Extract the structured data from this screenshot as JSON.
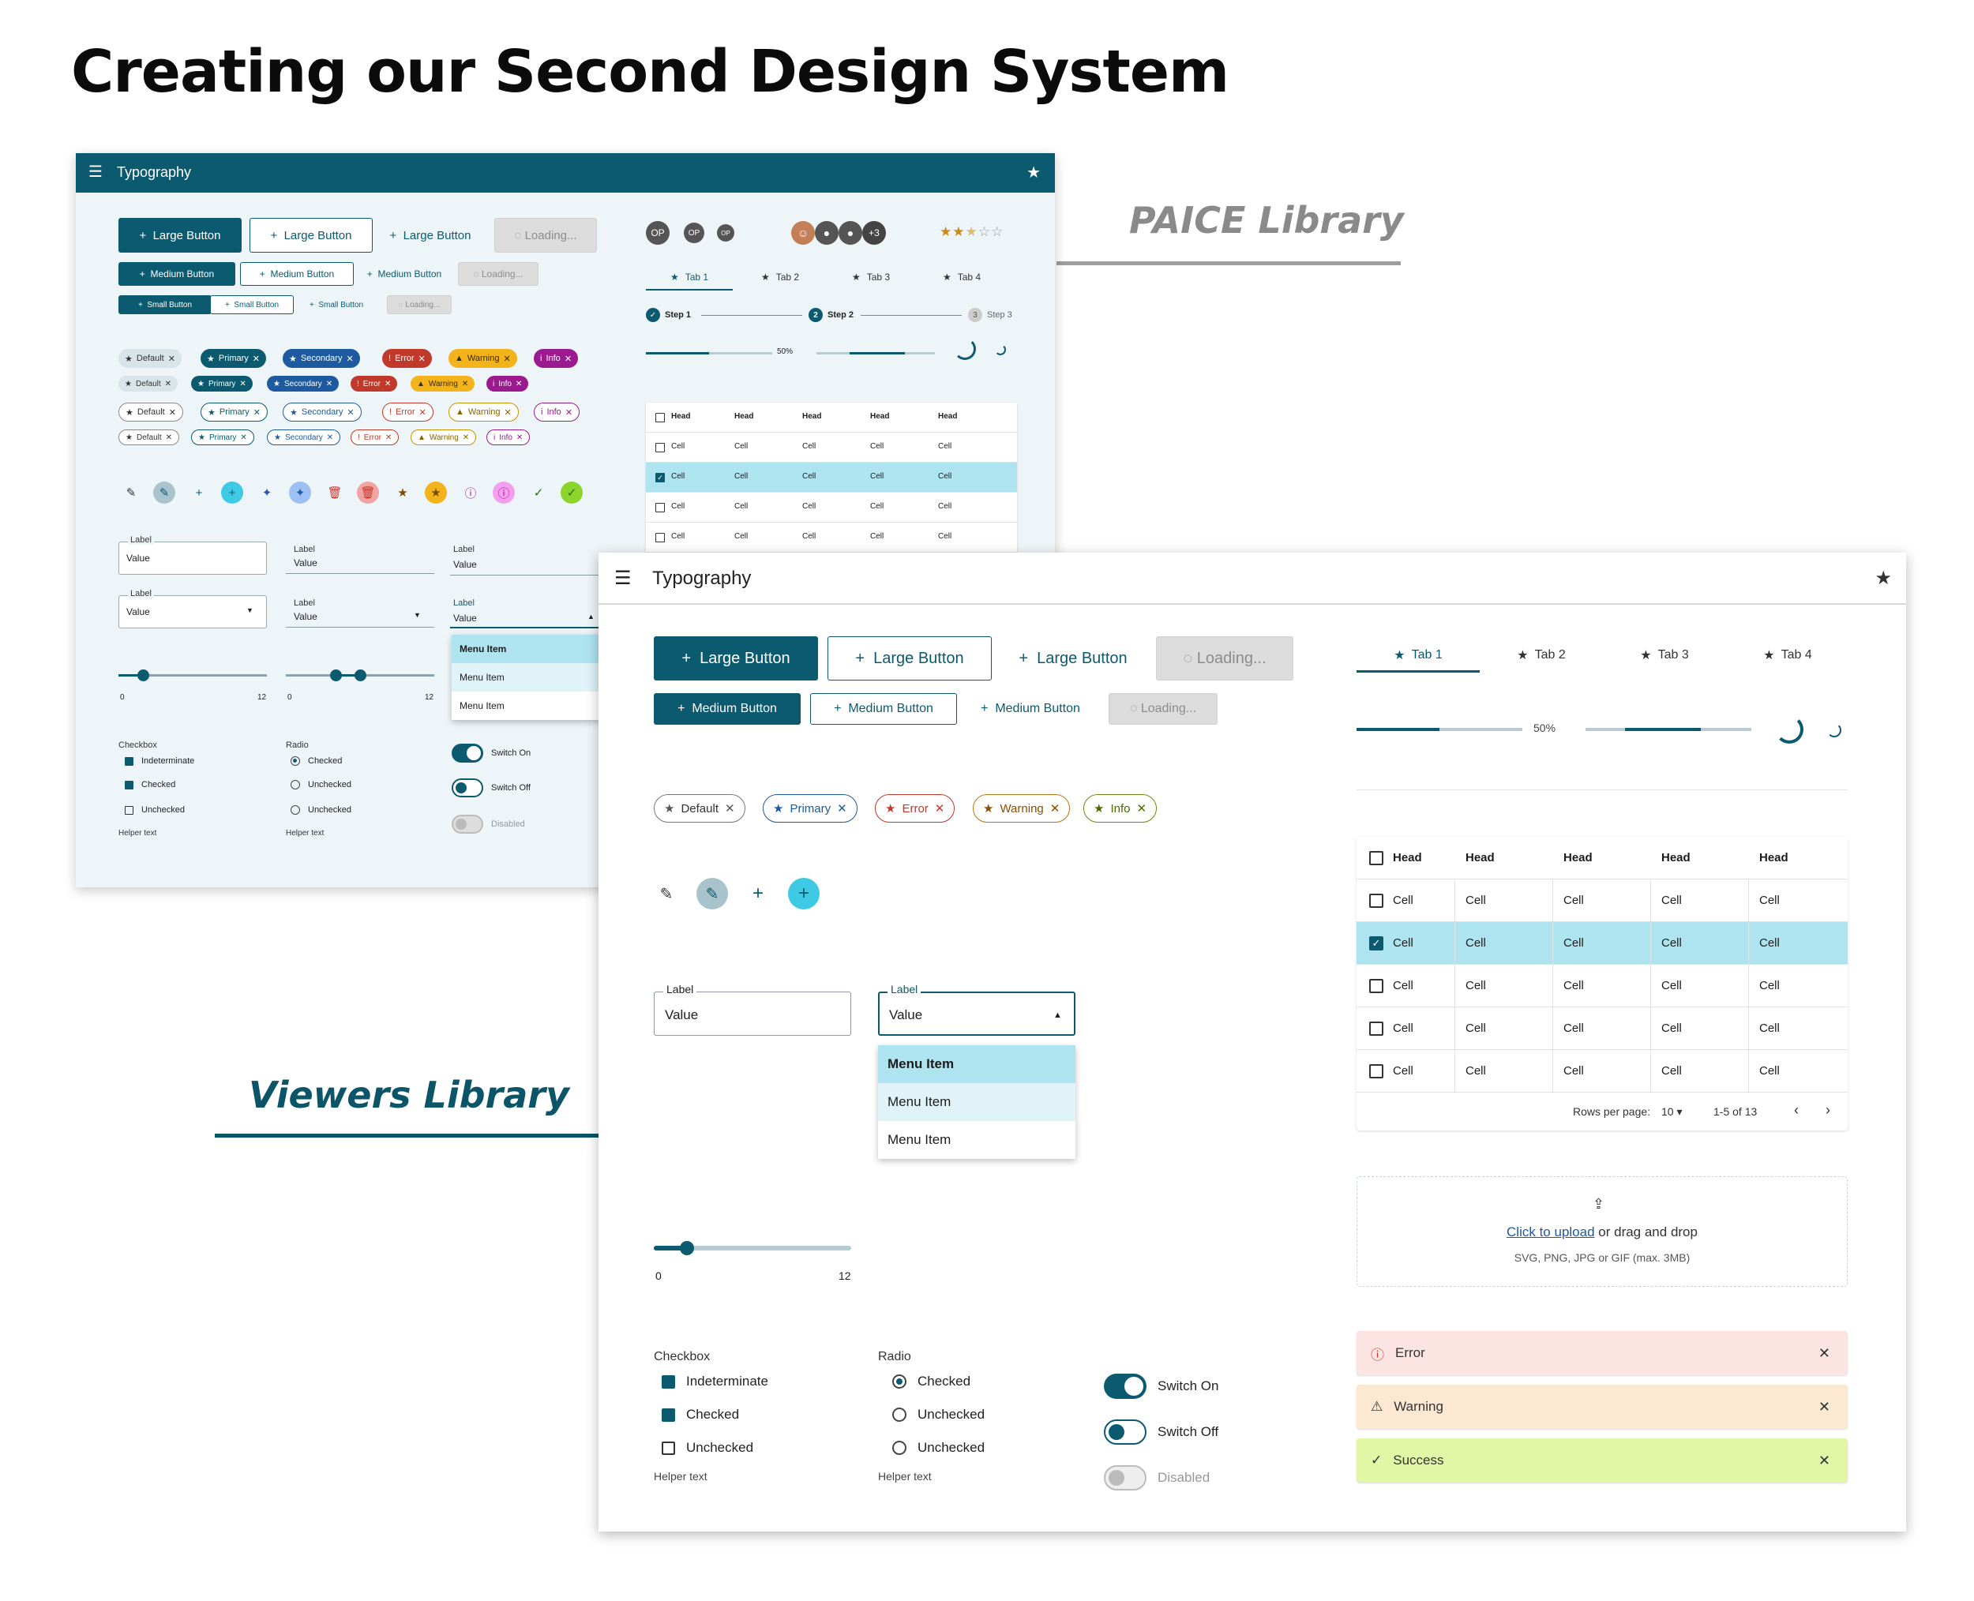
{
  "heading": "Creating our Second Design System",
  "paice_tag": "PAICE Library",
  "viewers_tag": "Viewers Library",
  "colors": {
    "primary": "#0c5a6f",
    "selected_row": "#aee4f0",
    "error_bg": "#fce4e2",
    "warning_bg": "#fde8d2",
    "success_bg": "#e2f7a6"
  },
  "paice": {
    "appbar_title": "Typography",
    "buttons": {
      "large": "Large Button",
      "medium": "Medium Button",
      "small": "Small Button",
      "loading": "Loading..."
    },
    "chips": [
      "Default",
      "Primary",
      "Secondary",
      "Error",
      "Warning",
      "Info"
    ],
    "avatars": {
      "initials": "OP",
      "more": "+3"
    },
    "rating": 2.5,
    "tabs": [
      "Tab 1",
      "Tab 2",
      "Tab 3",
      "Tab 4"
    ],
    "steps": [
      {
        "label": "Step 1",
        "n": "1"
      },
      {
        "label": "Step 2",
        "n": "2"
      },
      {
        "label": "Step 3",
        "n": "3"
      }
    ],
    "progress": {
      "label": "50%",
      "value": 0.5
    },
    "fields": {
      "label": "Label",
      "value": "Value"
    },
    "menu_items": [
      "Menu Item",
      "Menu Item",
      "Menu Item"
    ],
    "slider": {
      "min": "0",
      "max": "12",
      "value": 2,
      "range": [
        4,
        6
      ]
    },
    "checkbox": {
      "title": "Checkbox",
      "items": [
        "Indeterminate",
        "Checked",
        "Unchecked"
      ],
      "helper": "Helper text"
    },
    "radio": {
      "title": "Radio",
      "items": [
        "Checked",
        "Unchecked",
        "Unchecked"
      ],
      "helper": "Helper text"
    },
    "switches": [
      "Switch On",
      "Switch Off",
      "Disabled"
    ],
    "table": {
      "head": "Head",
      "cell": "Cell"
    }
  },
  "viewers": {
    "appbar_title": "Typography",
    "buttons": {
      "large": "Large Button",
      "medium": "Medium Button",
      "loading": "Loading..."
    },
    "chips": [
      "Default",
      "Primary",
      "Error",
      "Warning",
      "Info"
    ],
    "fields": {
      "label": "Label",
      "value": "Value"
    },
    "menu_items": [
      "Menu Item",
      "Menu Item",
      "Menu Item"
    ],
    "slider": {
      "min": "0",
      "max": "12",
      "value": 2
    },
    "checkbox": {
      "title": "Checkbox",
      "items": [
        "Indeterminate",
        "Checked",
        "Unchecked"
      ],
      "helper": "Helper text"
    },
    "radio": {
      "title": "Radio",
      "items": [
        "Checked",
        "Unchecked",
        "Unchecked"
      ],
      "helper": "Helper text"
    },
    "switches": [
      "Switch On",
      "Switch Off",
      "Disabled"
    ],
    "tabs": [
      "Tab 1",
      "Tab 2",
      "Tab 3",
      "Tab 4"
    ],
    "progress": {
      "label": "50%",
      "value": 0.5
    },
    "table": {
      "headers": [
        "Head",
        "Head",
        "Head",
        "Head",
        "Head"
      ],
      "rows": [
        [
          "Cell",
          "Cell",
          "Cell",
          "Cell",
          "Cell"
        ],
        [
          "Cell",
          "Cell",
          "Cell",
          "Cell",
          "Cell"
        ],
        [
          "Cell",
          "Cell",
          "Cell",
          "Cell",
          "Cell"
        ],
        [
          "Cell",
          "Cell",
          "Cell",
          "Cell",
          "Cell"
        ],
        [
          "Cell",
          "Cell",
          "Cell",
          "Cell",
          "Cell"
        ]
      ],
      "rows_per_page_label": "Rows per page:",
      "rows_per_page": "10",
      "range": "1-5 of 13"
    },
    "upload": {
      "link": "Click to upload",
      "rest": " or drag and drop",
      "hint": "SVG, PNG, JPG or GIF (max. 3MB)"
    },
    "alerts": {
      "error": "Error",
      "warning": "Warning",
      "success": "Success"
    }
  }
}
